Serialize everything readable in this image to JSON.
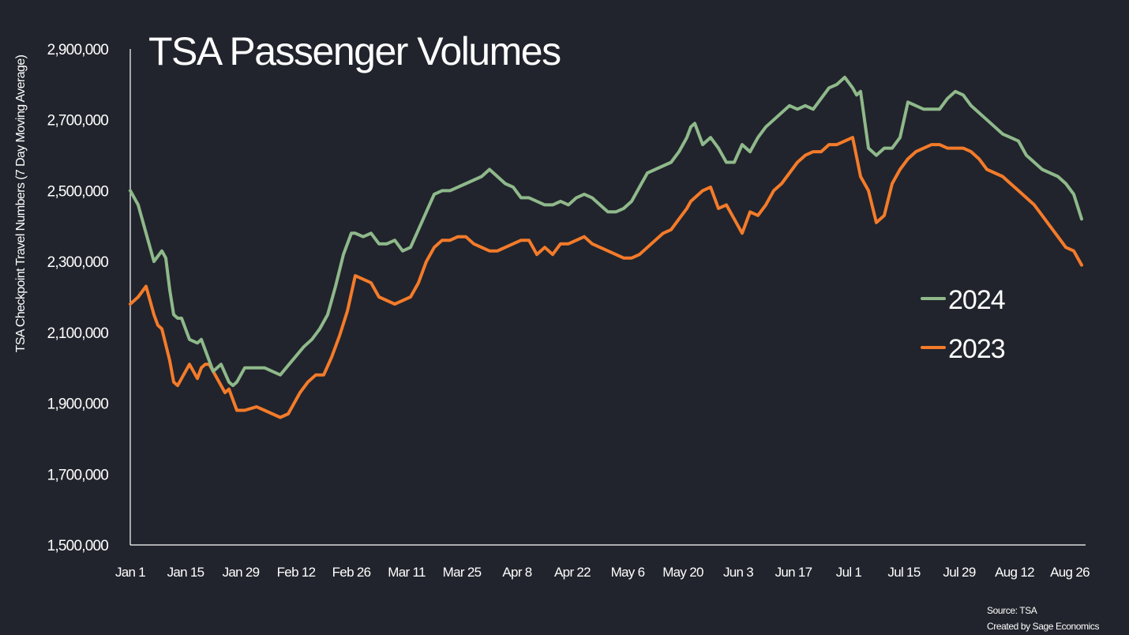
{
  "chart_data": {
    "type": "line",
    "title": "TSA Passenger Volumes",
    "ylabel": "TSA Checkpoint Travel Numbers (7 Day Moving Average)",
    "xlabel": "",
    "ylim": [
      1500000,
      2900000
    ],
    "yticks": [
      1500000,
      1700000,
      1900000,
      2100000,
      2300000,
      2500000,
      2700000,
      2900000
    ],
    "ytick_labels": [
      "1,500,000",
      "1,700,000",
      "1,900,000",
      "2,100,000",
      "2,300,000",
      "2,500,000",
      "2,700,000",
      "2,900,000"
    ],
    "xlim": [
      "Jan 1",
      "Aug 31"
    ],
    "xticks": [
      "Jan 1",
      "Jan 15",
      "Jan 29",
      "Feb 12",
      "Feb 26",
      "Mar 11",
      "Mar 25",
      "Apr 8",
      "Apr 22",
      "May 6",
      "May 20",
      "Jun 3",
      "Jun 17",
      "Jul 1",
      "Jul 15",
      "Jul 29",
      "Aug 12",
      "Aug 26"
    ],
    "grid": false,
    "legend_position": "right",
    "x_unit": "date (day of year, Jan 1 = 1)",
    "series": [
      {
        "name": "2024",
        "color": "#8fb98b",
        "x": [
          1,
          3,
          5,
          7,
          9,
          10,
          11,
          12,
          13,
          14,
          16,
          18,
          19,
          20,
          21,
          22,
          24,
          26,
          27,
          28,
          30,
          33,
          35,
          37,
          39,
          42,
          45,
          47,
          49,
          51,
          53,
          55,
          57,
          58,
          60,
          62,
          64,
          66,
          68,
          70,
          72,
          74,
          76,
          78,
          80,
          82,
          84,
          86,
          88,
          90,
          92,
          94,
          96,
          98,
          100,
          102,
          104,
          106,
          108,
          110,
          112,
          114,
          116,
          118,
          120,
          122,
          124,
          126,
          128,
          130,
          132,
          134,
          136,
          138,
          140,
          142,
          143,
          144,
          146,
          148,
          150,
          152,
          154,
          156,
          158,
          160,
          162,
          164,
          166,
          168,
          170,
          172,
          174,
          176,
          178,
          180,
          182,
          184,
          185,
          186,
          188,
          190,
          192,
          194,
          196,
          198,
          200,
          202,
          204,
          206,
          208,
          210,
          212,
          214,
          216,
          218,
          220,
          222,
          224,
          226,
          228,
          230,
          232,
          234,
          236,
          238,
          240,
          242
        ],
        "values": [
          2500000,
          2460000,
          2380000,
          2300000,
          2330000,
          2310000,
          2220000,
          2150000,
          2140000,
          2140000,
          2080000,
          2070000,
          2080000,
          2050000,
          2020000,
          1990000,
          2010000,
          1960000,
          1950000,
          1960000,
          2000000,
          2000000,
          2000000,
          1990000,
          1980000,
          2020000,
          2060000,
          2080000,
          2110000,
          2150000,
          2230000,
          2320000,
          2380000,
          2380000,
          2370000,
          2380000,
          2350000,
          2350000,
          2360000,
          2330000,
          2340000,
          2390000,
          2440000,
          2490000,
          2500000,
          2500000,
          2510000,
          2520000,
          2530000,
          2540000,
          2560000,
          2540000,
          2520000,
          2510000,
          2480000,
          2480000,
          2470000,
          2460000,
          2460000,
          2470000,
          2460000,
          2480000,
          2490000,
          2480000,
          2460000,
          2440000,
          2440000,
          2450000,
          2470000,
          2510000,
          2550000,
          2560000,
          2570000,
          2580000,
          2610000,
          2650000,
          2680000,
          2690000,
          2630000,
          2650000,
          2620000,
          2580000,
          2580000,
          2630000,
          2610000,
          2650000,
          2680000,
          2700000,
          2720000,
          2740000,
          2730000,
          2740000,
          2730000,
          2760000,
          2790000,
          2800000,
          2820000,
          2790000,
          2770000,
          2780000,
          2620000,
          2600000,
          2620000,
          2620000,
          2650000,
          2750000,
          2740000,
          2730000,
          2730000,
          2730000,
          2760000,
          2780000,
          2770000,
          2740000,
          2720000,
          2700000,
          2680000,
          2660000,
          2650000,
          2640000,
          2600000,
          2580000,
          2560000,
          2550000,
          2540000,
          2520000,
          2490000,
          2420000
        ]
      },
      {
        "name": "2023",
        "color": "#f47b2a",
        "x": [
          1,
          3,
          5,
          7,
          8,
          9,
          11,
          12,
          13,
          14,
          16,
          18,
          19,
          20,
          21,
          22,
          24,
          25,
          26,
          27,
          28,
          30,
          33,
          35,
          37,
          39,
          41,
          42,
          44,
          46,
          48,
          50,
          52,
          54,
          56,
          58,
          60,
          62,
          64,
          66,
          68,
          70,
          72,
          74,
          76,
          78,
          80,
          82,
          84,
          86,
          88,
          90,
          92,
          94,
          96,
          98,
          100,
          102,
          104,
          106,
          108,
          110,
          112,
          114,
          116,
          118,
          120,
          122,
          124,
          126,
          128,
          130,
          132,
          134,
          136,
          138,
          140,
          142,
          143,
          144,
          146,
          148,
          150,
          152,
          154,
          156,
          158,
          160,
          162,
          164,
          166,
          168,
          170,
          172,
          174,
          176,
          178,
          180,
          182,
          184,
          186,
          188,
          190,
          192,
          194,
          196,
          198,
          200,
          202,
          204,
          206,
          208,
          210,
          212,
          214,
          216,
          218,
          220,
          222,
          224,
          226,
          228,
          230,
          232,
          234,
          236,
          238,
          240,
          242
        ],
        "values": [
          2180000,
          2200000,
          2230000,
          2150000,
          2120000,
          2110000,
          2020000,
          1960000,
          1950000,
          1970000,
          2010000,
          1970000,
          2000000,
          2010000,
          2010000,
          1990000,
          1950000,
          1930000,
          1940000,
          1910000,
          1880000,
          1880000,
          1890000,
          1880000,
          1870000,
          1860000,
          1870000,
          1890000,
          1930000,
          1960000,
          1980000,
          1980000,
          2030000,
          2090000,
          2160000,
          2260000,
          2250000,
          2240000,
          2200000,
          2190000,
          2180000,
          2190000,
          2200000,
          2240000,
          2300000,
          2340000,
          2360000,
          2360000,
          2370000,
          2370000,
          2350000,
          2340000,
          2330000,
          2330000,
          2340000,
          2350000,
          2360000,
          2360000,
          2320000,
          2340000,
          2320000,
          2350000,
          2350000,
          2360000,
          2370000,
          2350000,
          2340000,
          2330000,
          2320000,
          2310000,
          2310000,
          2320000,
          2340000,
          2360000,
          2380000,
          2390000,
          2420000,
          2450000,
          2470000,
          2480000,
          2500000,
          2510000,
          2450000,
          2460000,
          2420000,
          2380000,
          2440000,
          2430000,
          2460000,
          2500000,
          2520000,
          2550000,
          2580000,
          2600000,
          2610000,
          2610000,
          2630000,
          2630000,
          2640000,
          2650000,
          2540000,
          2500000,
          2410000,
          2430000,
          2520000,
          2560000,
          2590000,
          2610000,
          2620000,
          2630000,
          2630000,
          2620000,
          2620000,
          2620000,
          2610000,
          2590000,
          2560000,
          2550000,
          2540000,
          2520000,
          2500000,
          2480000,
          2460000,
          2430000,
          2400000,
          2370000,
          2340000,
          2330000,
          2290000
        ]
      }
    ],
    "annotations": [
      "Source: TSA",
      "Created by Sage Economics"
    ]
  }
}
